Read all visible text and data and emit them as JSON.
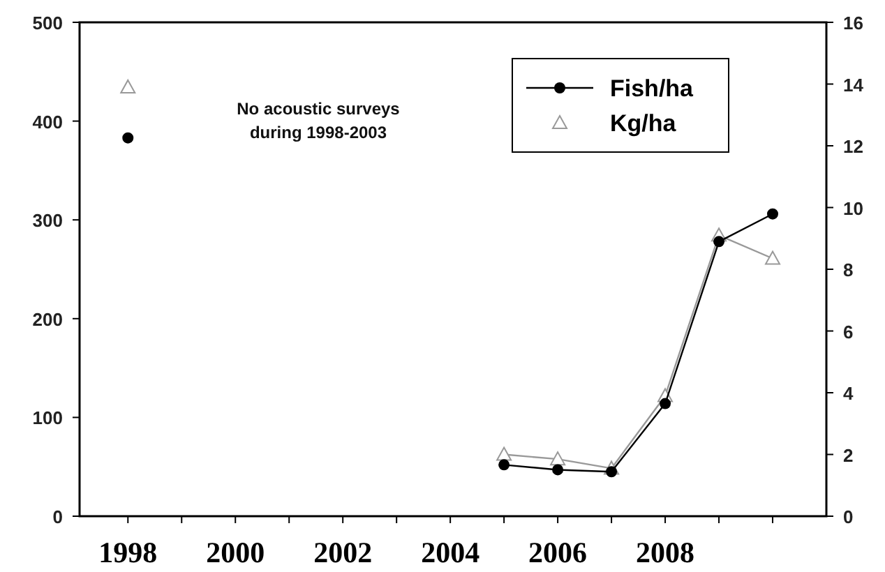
{
  "chart_data": {
    "type": "line",
    "x": [
      1998,
      2004,
      2005,
      2006,
      2007,
      2008,
      2009,
      2010
    ],
    "xlim": [
      1997.1,
      2011
    ],
    "xticks": [
      1998,
      {
        "value": 1999,
        "label": null
      },
      2000,
      {
        "value": 2001,
        "label": null
      },
      2002,
      {
        "value": 2003,
        "label": null
      },
      2004,
      {
        "value": 2005,
        "label": null
      },
      2006,
      {
        "value": 2007,
        "label": null
      },
      2008,
      {
        "value": 2009,
        "label": null
      },
      {
        "value": 2010,
        "label": null
      }
    ],
    "ylim": [
      0,
      500
    ],
    "yticks": [
      0,
      100,
      200,
      300,
      400,
      500
    ],
    "y2lim": [
      0,
      16
    ],
    "y2ticks": [
      0,
      2,
      4,
      6,
      8,
      10,
      12,
      14,
      16
    ],
    "series": [
      {
        "name": "Fish/ha",
        "color": "#000000",
        "marker": "circle",
        "values": [
          383,
          null,
          52,
          47,
          45,
          114,
          278,
          306
        ]
      },
      {
        "name": "Kg/ha",
        "color": "#999999",
        "marker": "triangle",
        "axis": "y2",
        "values": [
          13.9,
          null,
          2.0,
          1.85,
          1.55,
          3.9,
          9.1,
          8.35
        ]
      }
    ],
    "annotations": [
      "No acoustic surveys during 1998-2003"
    ],
    "legend": "top right",
    "grid": false
  }
}
